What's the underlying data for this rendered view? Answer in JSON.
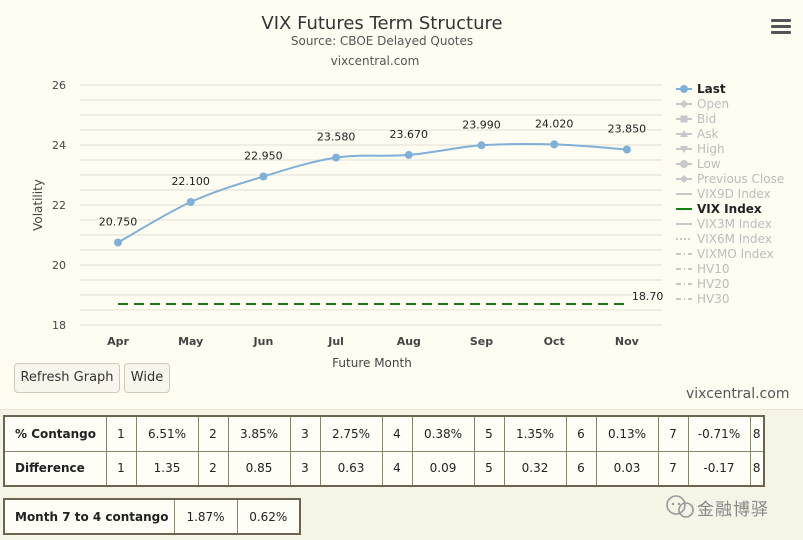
{
  "chart_data": {
    "type": "line",
    "title": "VIX Futures Term Structure",
    "subtitle": "Source: CBOE Delayed Quotes",
    "site": "vixcentral.com",
    "xlabel": "Future Month",
    "ylabel": "Volatility",
    "ylim": [
      18,
      26
    ],
    "yticks": [
      "26",
      "24",
      "22",
      "20",
      "18"
    ],
    "grid": true,
    "legend_placement": "right",
    "categories": [
      "Apr",
      "May",
      "Jun",
      "Jul",
      "Aug",
      "Sep",
      "Oct",
      "Nov"
    ],
    "series": [
      {
        "name": "Last",
        "values": [
          20.75,
          22.1,
          22.95,
          23.58,
          23.67,
          23.99,
          24.02,
          23.85
        ],
        "labels": [
          "20.750",
          "22.100",
          "22.950",
          "23.580",
          "23.670",
          "23.990",
          "24.020",
          "23.850"
        ],
        "color": "#7fb0d8"
      },
      {
        "name": "VIX Index",
        "values": [
          18.7,
          18.7,
          18.7,
          18.7,
          18.7,
          18.7,
          18.7,
          18.7
        ],
        "label": "18.70",
        "color": "#137f13"
      }
    ],
    "legend": [
      {
        "name": "Last",
        "active": true,
        "symbol": "circle-line"
      },
      {
        "name": "Open",
        "active": false,
        "symbol": "diamond-line"
      },
      {
        "name": "Bid",
        "active": false,
        "symbol": "square-line"
      },
      {
        "name": "Ask",
        "active": false,
        "symbol": "triangle-line"
      },
      {
        "name": "High",
        "active": false,
        "symbol": "triangle-down-line"
      },
      {
        "name": "Low",
        "active": false,
        "symbol": "circle-line"
      },
      {
        "name": "Previous Close",
        "active": false,
        "symbol": "diamond-line"
      },
      {
        "name": "VIX9D Index",
        "active": false,
        "symbol": "line"
      },
      {
        "name": "VIX Index",
        "active": true,
        "symbol": "green-line"
      },
      {
        "name": "VIX3M Index",
        "active": false,
        "symbol": "line"
      },
      {
        "name": "VIX6M Index",
        "active": false,
        "symbol": "dotted"
      },
      {
        "name": "VIXMO Index",
        "active": false,
        "symbol": "dash-dot"
      },
      {
        "name": "HV10",
        "active": false,
        "symbol": "dash-dot"
      },
      {
        "name": "HV20",
        "active": false,
        "symbol": "dash-dot"
      },
      {
        "name": "HV30",
        "active": false,
        "symbol": "dash-dot"
      }
    ]
  },
  "buttons": {
    "refresh": "Refresh Graph",
    "wide": "Wide"
  },
  "credit": "vixcentral.com",
  "contango_table": {
    "rows": [
      {
        "label": "% Contango",
        "cells": [
          "1",
          "6.51%",
          "2",
          "3.85%",
          "3",
          "2.75%",
          "4",
          "0.38%",
          "5",
          "1.35%",
          "6",
          "0.13%",
          "7",
          "-0.71%",
          "8"
        ]
      },
      {
        "label": "Difference",
        "cells": [
          "1",
          "1.35",
          "2",
          "0.85",
          "3",
          "0.63",
          "4",
          "0.09",
          "5",
          "0.32",
          "6",
          "0.03",
          "7",
          "-0.17",
          "8"
        ]
      }
    ]
  },
  "month74": {
    "label": "Month 7 to 4 contango",
    "values": [
      "1.87%",
      "0.62%"
    ]
  },
  "watermark": "金融博驿"
}
